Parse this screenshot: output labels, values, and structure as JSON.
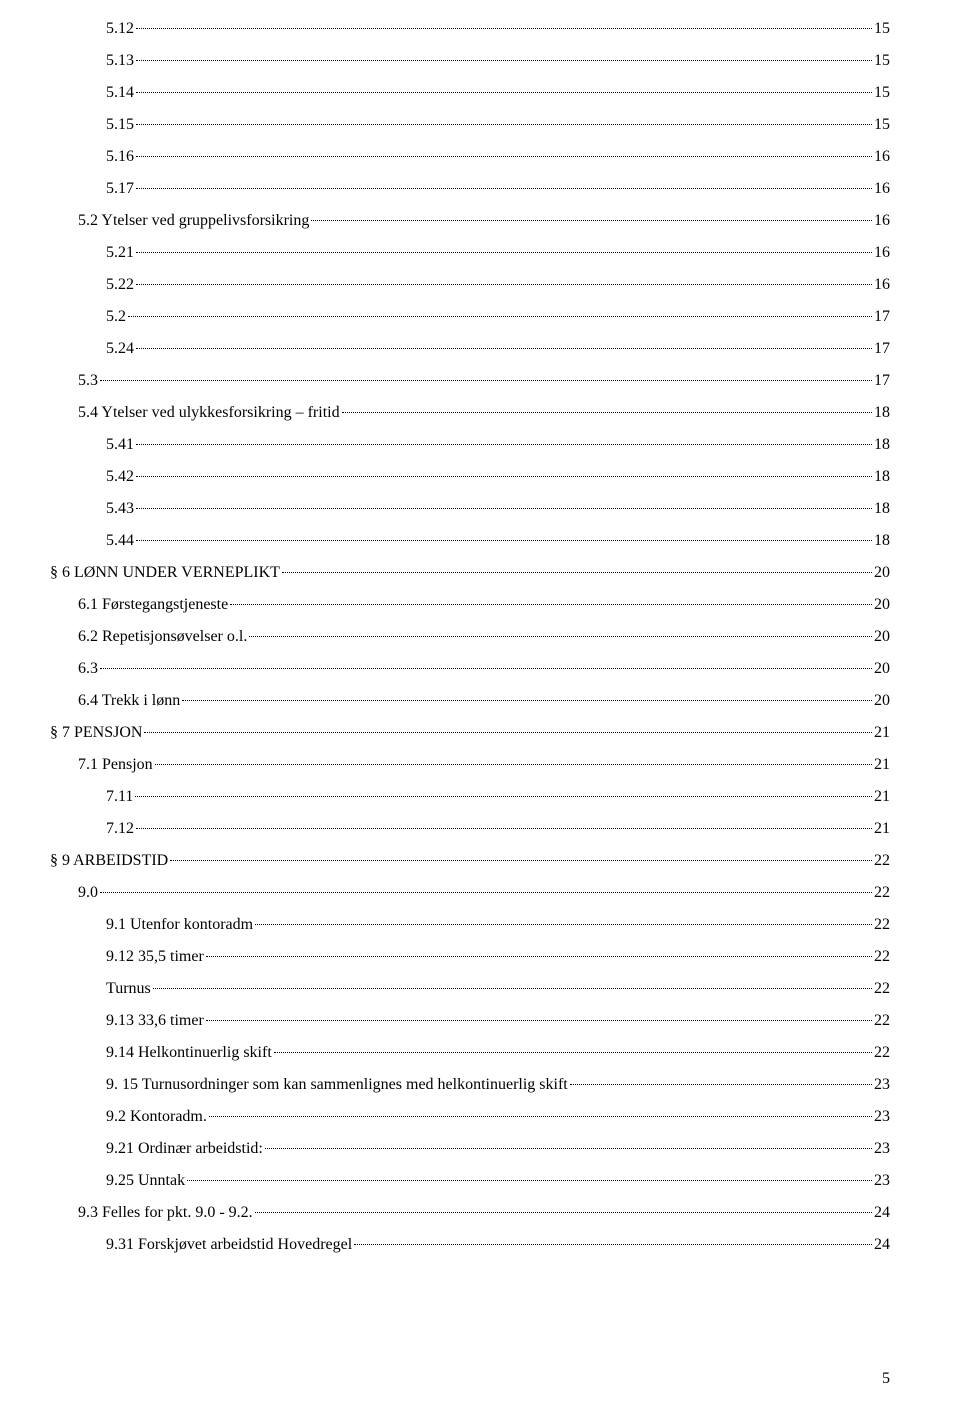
{
  "toc": [
    {
      "label": "5.12",
      "page": "15",
      "indent": 2
    },
    {
      "label": "5.13",
      "page": "15",
      "indent": 2
    },
    {
      "label": "5.14",
      "page": "15",
      "indent": 2
    },
    {
      "label": "5.15",
      "page": "15",
      "indent": 2
    },
    {
      "label": "5.16",
      "page": "16",
      "indent": 2
    },
    {
      "label": "5.17",
      "page": "16",
      "indent": 2
    },
    {
      "label": "5.2 Ytelser ved gruppelivsforsikring",
      "page": "16",
      "indent": 1
    },
    {
      "label": "5.21",
      "page": "16",
      "indent": 2
    },
    {
      "label": "5.22",
      "page": "16",
      "indent": 2
    },
    {
      "label": "5.2",
      "page": "17",
      "indent": 2
    },
    {
      "label": "5.24",
      "page": "17",
      "indent": 2
    },
    {
      "label": "5.3",
      "page": "17",
      "indent": 1
    },
    {
      "label": "5.4 Ytelser ved ulykkesforsikring – fritid",
      "page": "18",
      "indent": 1
    },
    {
      "label": "5.41",
      "page": "18",
      "indent": 2
    },
    {
      "label": "5.42",
      "page": "18",
      "indent": 2
    },
    {
      "label": "5.43",
      "page": "18",
      "indent": 2
    },
    {
      "label": "5.44",
      "page": "18",
      "indent": 2
    },
    {
      "label": "§ 6 LØNN UNDER VERNEPLIKT",
      "page": " 20",
      "indent": 0
    },
    {
      "label": "6.1 Førstegangstjeneste",
      "page": "20",
      "indent": 1
    },
    {
      "label": "6.2 Repetisjonsøvelser o.l.",
      "page": "20",
      "indent": 1
    },
    {
      "label": "6.3",
      "page": "20",
      "indent": 1
    },
    {
      "label": "6.4 Trekk i lønn",
      "page": "20",
      "indent": 1
    },
    {
      "label": "§ 7 PENSJON",
      "page": " 21",
      "indent": 0
    },
    {
      "label": "7.1 Pensjon",
      "page": "21",
      "indent": 1
    },
    {
      "label": "7.11",
      "page": "21",
      "indent": 2
    },
    {
      "label": "7.12",
      "page": "21",
      "indent": 2
    },
    {
      "label": "§ 9 ARBEIDSTID",
      "page": " 22",
      "indent": 0
    },
    {
      "label": "9.0",
      "page": "22",
      "indent": 1
    },
    {
      "label": "9.1 Utenfor kontoradm",
      "page": "22",
      "indent": 2
    },
    {
      "label": "9.12   35,5 timer",
      "page": "22",
      "indent": 2
    },
    {
      "label": "Turnus",
      "page": "22",
      "indent": 2
    },
    {
      "label": "9.13   33,6 timer",
      "page": "22",
      "indent": 2
    },
    {
      "label": "9.14 Helkontinuerlig skift",
      "page": "22",
      "indent": 2
    },
    {
      "label": "9. 15 Turnusordninger som kan sammenlignes med helkontinuerlig skift",
      "page": "23",
      "indent": 2
    },
    {
      "label": "9.2 Kontoradm.",
      "page": "23",
      "indent": 2
    },
    {
      "label": "9.21 Ordinær arbeidstid:",
      "page": "23",
      "indent": 2
    },
    {
      "label": "9.25 Unntak",
      "page": "23",
      "indent": 2
    },
    {
      "label": "9.3 Felles for pkt. 9.0 - 9.2.",
      "page": "24",
      "indent": 1
    },
    {
      "label": "9.31 Forskjøvet arbeidstid Hovedregel",
      "page": "24",
      "indent": 2
    }
  ],
  "page_number": "5"
}
